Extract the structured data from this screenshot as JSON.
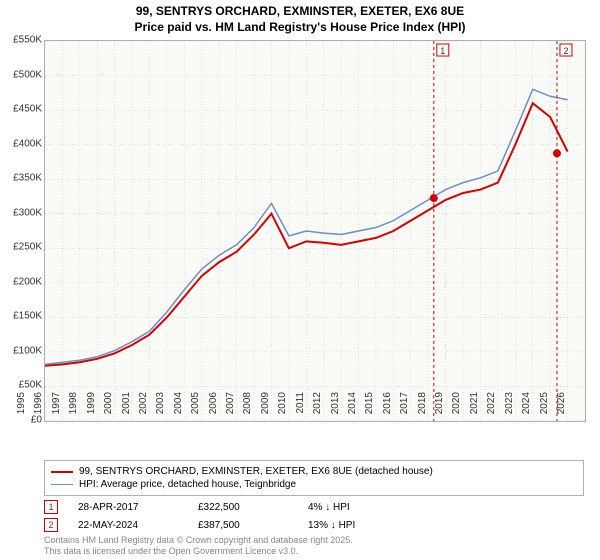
{
  "title_line1": "99, SENTRYS ORCHARD, EXMINSTER, EXETER, EX6 8UE",
  "title_line2": "Price paid vs. HM Land Registry's House Price Index (HPI)",
  "chart": {
    "type": "line",
    "background_color": "#fafaf7",
    "grid_color": "#cccccc",
    "border_color": "#b0b0b0",
    "x_years": [
      1995,
      1996,
      1997,
      1998,
      1999,
      2000,
      2001,
      2002,
      2003,
      2004,
      2005,
      2006,
      2007,
      2008,
      2009,
      2010,
      2011,
      2012,
      2013,
      2014,
      2015,
      2016,
      2017,
      2018,
      2019,
      2020,
      2021,
      2022,
      2023,
      2024,
      2025,
      2026
    ],
    "y_ticks": [
      0,
      50,
      100,
      150,
      200,
      250,
      300,
      350,
      400,
      450,
      500,
      550
    ],
    "y_prefix": "£",
    "y_suffix": "K",
    "ylim": [
      0,
      550
    ],
    "series": [
      {
        "name": "99, SENTRYS ORCHARD, EXMINSTER, EXETER, EX6 8UE (detached house)",
        "color": "#d40000",
        "width": 2,
        "values": [
          80,
          82,
          85,
          90,
          98,
          110,
          125,
          150,
          180,
          210,
          230,
          245,
          270,
          300,
          250,
          260,
          258,
          255,
          260,
          265,
          275,
          290,
          305,
          320,
          330,
          335,
          345,
          400,
          460,
          440,
          390,
          null
        ]
      },
      {
        "name": "HPI: Average price, detached house, Teignbridge",
        "color": "#6a8fc7",
        "width": 1.5,
        "values": [
          82,
          85,
          88,
          93,
          102,
          115,
          130,
          158,
          190,
          220,
          240,
          255,
          280,
          315,
          268,
          275,
          272,
          270,
          275,
          280,
          290,
          305,
          320,
          335,
          345,
          352,
          362,
          420,
          480,
          470,
          465,
          null
        ]
      }
    ],
    "sales": [
      {
        "n": "1",
        "date": "28-APR-2017",
        "price": "£322,500",
        "diff": "4% ↓ HPI",
        "year": 2017.32,
        "value": 322.5,
        "color": "#d40000"
      },
      {
        "n": "2",
        "date": "22-MAY-2024",
        "price": "£387,500",
        "diff": "13% ↓ HPI",
        "year": 2024.39,
        "value": 387.5,
        "color": "#d40000"
      }
    ]
  },
  "footer_line1": "Contains HM Land Registry data © Crown copyright and database right 2025.",
  "footer_line2": "This data is licensed under the Open Government Licence v3.0."
}
